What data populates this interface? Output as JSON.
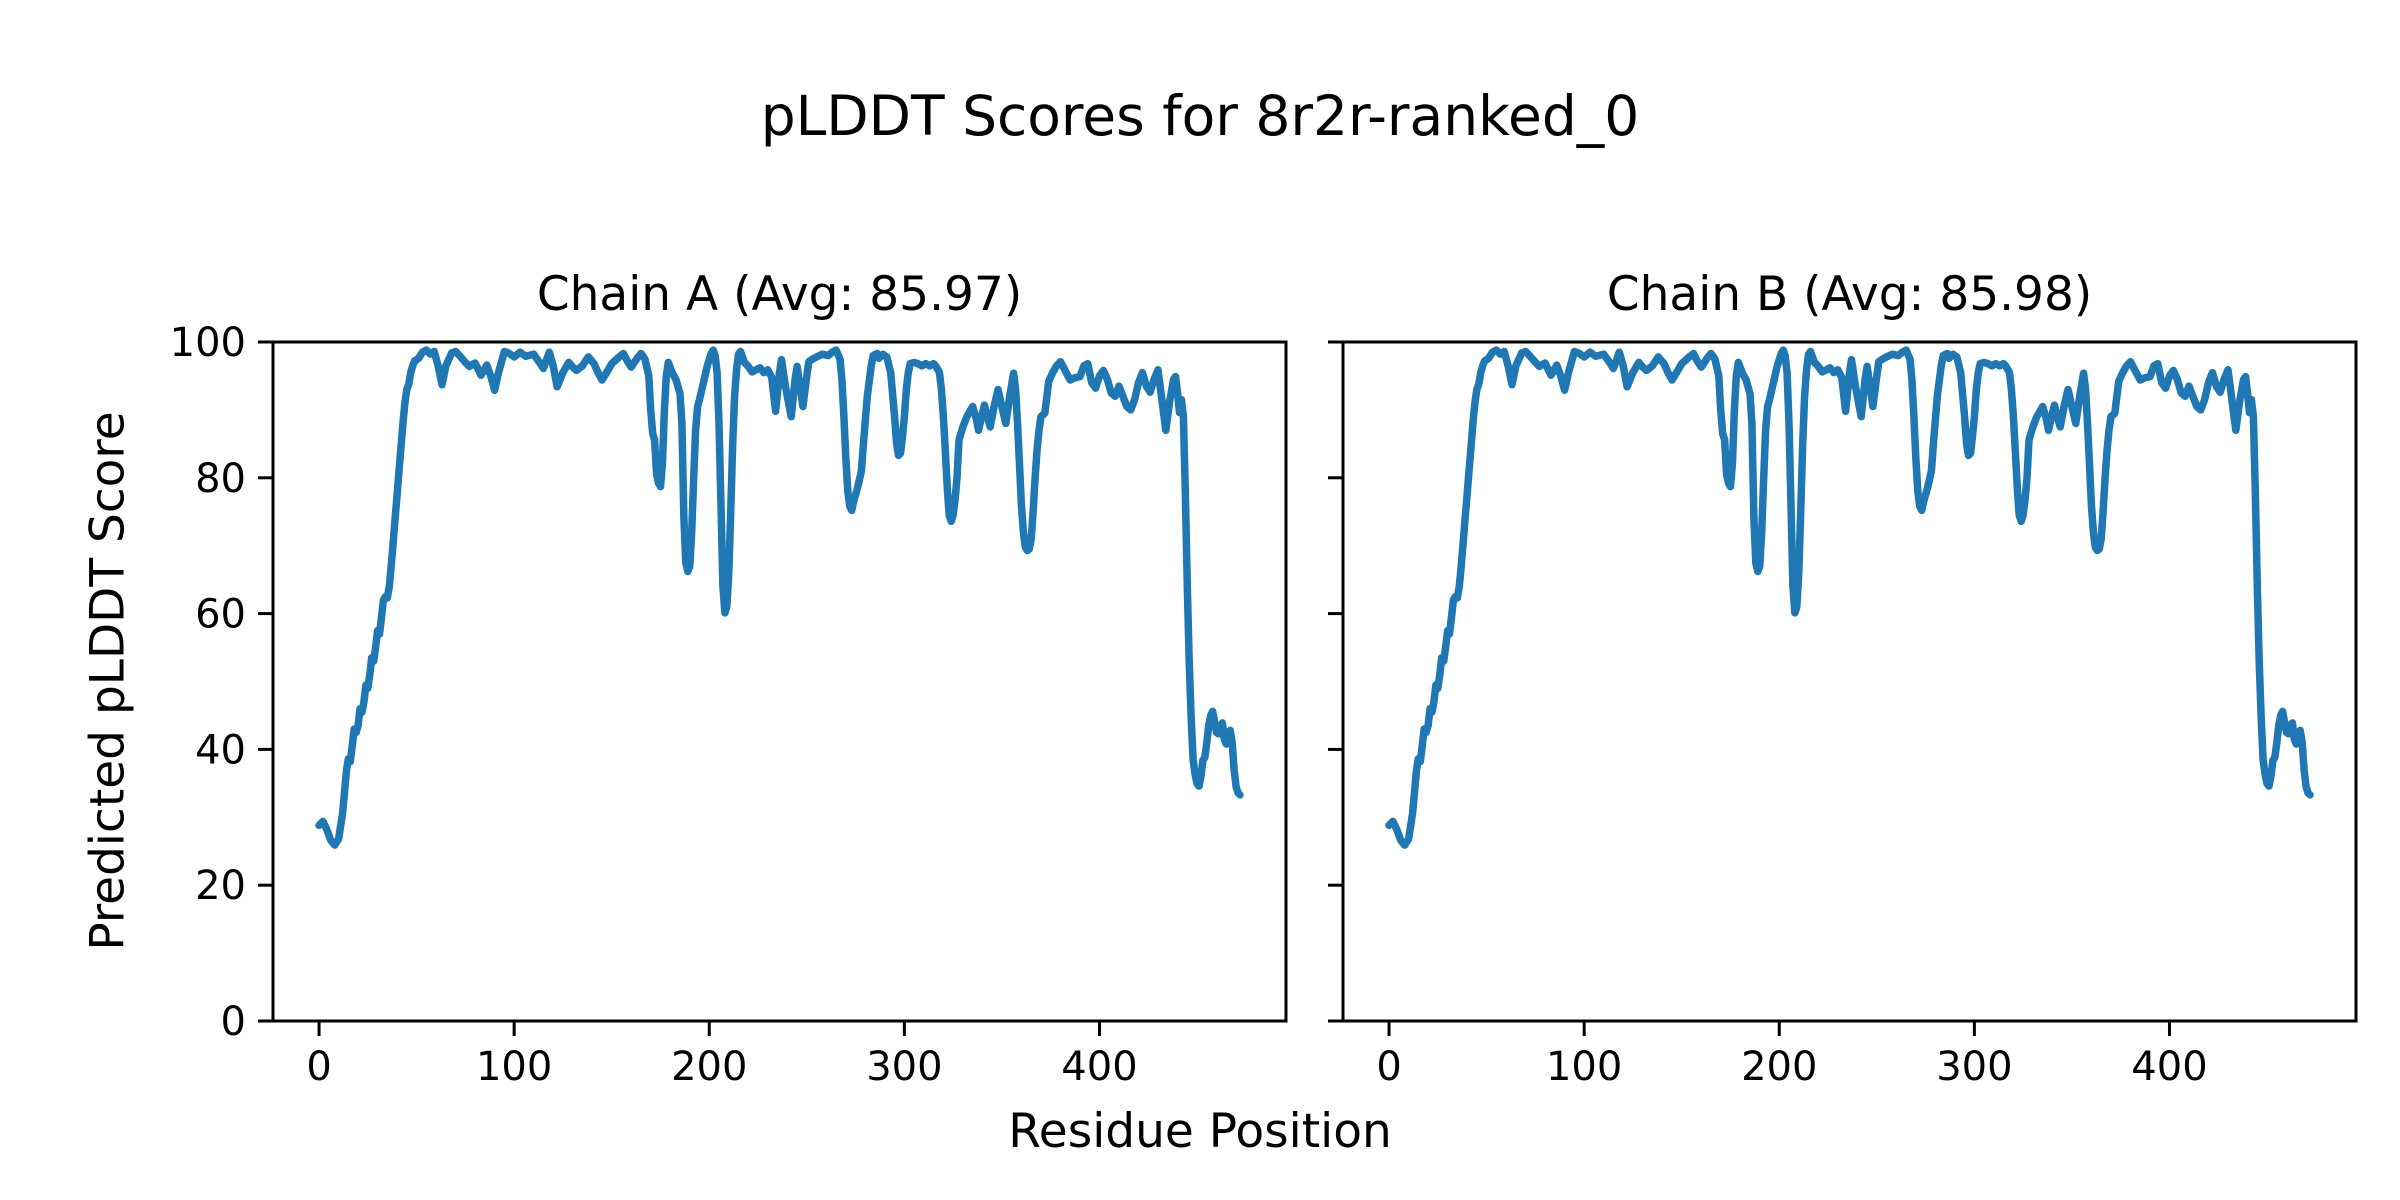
{
  "figure": {
    "background_color": "#ffffff",
    "text_color": "#000000"
  },
  "chart_data": {
    "type": "line",
    "title": "pLDDT Scores for 8r2r-ranked_0",
    "xlabel": "Residue Position",
    "ylabel": "Predicted pLDDT Score",
    "grid": false,
    "legend": null,
    "line_color": "#1f77b4",
    "spine_color": "#000000",
    "xlim": [
      -23.6,
      495.6
    ],
    "ylim": [
      0,
      100
    ],
    "xticks": [
      0,
      100,
      200,
      300,
      400
    ],
    "yticks": [
      0,
      20,
      40,
      60,
      80,
      100
    ],
    "subplots": [
      {
        "title": "Chain A (Avg: 85.97)",
        "avg": 85.97,
        "series_name": "Chain A",
        "show_y_tick_labels": true
      },
      {
        "title": "Chain B (Avg: 85.98)",
        "avg": 85.98,
        "series_name": "Chain B",
        "show_y_tick_labels": false
      }
    ],
    "x": [
      0,
      2,
      4,
      6,
      8,
      10,
      12,
      13,
      14,
      15,
      16,
      17,
      18,
      19,
      20,
      21,
      22,
      23,
      24,
      25,
      26,
      27,
      28,
      29,
      30,
      31,
      32,
      33,
      34,
      35,
      36,
      37,
      38,
      39,
      40,
      41,
      42,
      43,
      44,
      45,
      46,
      47,
      48,
      49,
      51,
      53,
      55,
      57,
      59,
      61,
      63,
      65,
      68,
      70,
      72,
      75,
      77,
      80,
      83,
      86,
      88,
      90,
      92,
      95,
      97,
      100,
      103,
      106,
      110,
      113,
      115,
      118,
      120,
      122,
      125,
      128,
      130,
      132,
      135,
      138,
      141,
      143,
      145,
      148,
      150,
      153,
      156,
      158,
      160,
      163,
      165,
      167,
      169,
      170,
      171,
      172,
      173,
      174,
      175,
      176,
      177,
      178,
      179,
      181,
      183,
      185,
      186,
      187,
      188,
      189,
      190,
      191,
      192,
      193,
      194,
      195,
      197,
      199,
      201,
      202,
      203,
      204,
      205,
      206,
      207,
      208,
      209,
      210,
      211,
      212,
      213,
      214,
      215,
      216,
      218,
      220,
      222,
      224,
      226,
      228,
      230,
      232,
      234,
      236,
      237,
      239,
      242,
      244,
      245,
      247,
      248,
      250,
      251,
      253,
      255,
      258,
      261,
      263,
      265,
      267,
      268,
      269,
      270,
      271,
      272,
      273,
      274,
      276,
      278,
      279,
      281,
      283,
      284,
      286,
      287,
      289,
      291,
      293,
      295,
      296,
      297,
      298,
      299,
      300,
      301,
      302,
      303,
      305,
      307,
      309,
      311,
      313,
      315,
      316,
      318,
      319,
      320,
      321,
      322,
      323,
      324,
      325,
      326,
      327,
      328,
      330,
      332,
      335,
      337,
      338,
      340,
      341,
      343,
      344,
      346,
      348,
      350,
      352,
      354,
      356,
      357,
      358,
      359,
      360,
      361,
      362,
      363,
      364,
      365,
      366,
      367,
      368,
      369,
      370,
      372,
      374,
      376,
      378,
      380,
      382,
      385,
      387,
      390,
      392,
      394,
      396,
      398,
      400,
      402,
      404,
      406,
      408,
      410,
      412,
      414,
      416,
      418,
      420,
      422,
      424,
      426,
      428,
      430,
      432,
      434,
      436,
      438,
      439,
      440,
      441,
      442,
      443,
      444,
      445,
      446,
      447,
      448,
      449,
      450,
      451,
      452,
      453,
      454,
      455,
      456,
      457,
      458,
      459,
      460,
      461,
      462,
      463,
      464,
      465,
      466,
      467,
      468,
      469,
      470,
      471,
      472
    ],
    "series": [
      {
        "name": "Chain A",
        "values": [
          28.8,
          29.4,
          28.2,
          26.6,
          25.9,
          26.8,
          30.5,
          33.5,
          36.8,
          38.6,
          38.2,
          40.5,
          43,
          42.5,
          43.5,
          46,
          45.5,
          47,
          49.5,
          49,
          51,
          53.5,
          53,
          55,
          57.5,
          57,
          59.5,
          62,
          62.5,
          62.3,
          64,
          67,
          70.5,
          74,
          77.5,
          81,
          84.5,
          88,
          91,
          93,
          93.8,
          95.5,
          96.5,
          97.2,
          97.6,
          98.5,
          98.8,
          98.2,
          98.6,
          96.5,
          93.7,
          96.5,
          98.4,
          98.6,
          98,
          97,
          96.4,
          96.9,
          95.1,
          96.6,
          95,
          92.9,
          95.5,
          98.6,
          98.4,
          97.8,
          98.5,
          97.9,
          98.2,
          97,
          96.1,
          98.5,
          96.5,
          93.4,
          95.5,
          97,
          96.3,
          95.8,
          96.5,
          97.8,
          96.8,
          95.5,
          94.4,
          95.8,
          96.8,
          97.6,
          98.3,
          97.2,
          96.3,
          97.6,
          98.3,
          97.5,
          95,
          90,
          86.5,
          85.6,
          80.5,
          79.2,
          78.7,
          82,
          90,
          95,
          97,
          95.5,
          94.4,
          92.4,
          88,
          74,
          67.5,
          66.2,
          67,
          72,
          80,
          87,
          90.5,
          91.5,
          94,
          96.5,
          98.3,
          98.8,
          98,
          95.5,
          88,
          76,
          64,
          60.1,
          61,
          66,
          75,
          85,
          92,
          96,
          98.2,
          98.6,
          97,
          96.4,
          95.6,
          95.9,
          96.2,
          95.5,
          95.9,
          94.8,
          89.8,
          95.5,
          97.4,
          93.5,
          89,
          94.5,
          96.4,
          92.5,
          90.5,
          95,
          97.1,
          97.5,
          97.8,
          98.2,
          98,
          98.5,
          98.8,
          97.5,
          94.5,
          89,
          83,
          78,
          75.8,
          75.2,
          76.5,
          78.5,
          81,
          85,
          92,
          96.5,
          98,
          98.3,
          97.6,
          98.2,
          97.8,
          95.5,
          89,
          85,
          83.3,
          83.6,
          86,
          89,
          93,
          95.5,
          96.8,
          97,
          96.8,
          96.5,
          96.8,
          96.5,
          96.8,
          96.5,
          95.5,
          93,
          89,
          84,
          78.5,
          74.5,
          73.6,
          74.5,
          76.8,
          80,
          85.6,
          87.5,
          89,
          90.5,
          88.5,
          87,
          89.5,
          90.7,
          88.5,
          87.5,
          90.5,
          93,
          90.5,
          88,
          92,
          95.4,
          93,
          88,
          82,
          76,
          72,
          69.8,
          69.3,
          69.5,
          71,
          75,
          80,
          84,
          87,
          89,
          89.5,
          94.2,
          95.5,
          96.5,
          97.1,
          96,
          94.4,
          94.7,
          94.9,
          96.5,
          96.8,
          94,
          93.2,
          95,
          95.8,
          94.5,
          92.5,
          92,
          93.5,
          92,
          90.5,
          90,
          91.5,
          94,
          95.5,
          93.5,
          92.6,
          94.5,
          95.9,
          91.5,
          87,
          91.3,
          94.5,
          94.9,
          92.5,
          89.6,
          91.5,
          89,
          78,
          64,
          53,
          44.5,
          38.5,
          36.3,
          35,
          34.6,
          36,
          38.4,
          38.8,
          41,
          43.5,
          45,
          45.6,
          44,
          42.5,
          42.3,
          43.5,
          43.9,
          41.5,
          40.8,
          42,
          42.8,
          41,
          37,
          34.5,
          33.6,
          33.3
        ]
      },
      {
        "name": "Chain B",
        "values": [
          28.8,
          29.4,
          28.2,
          26.6,
          25.9,
          26.8,
          30.5,
          33.5,
          36.8,
          38.6,
          38.2,
          40.5,
          43,
          42.5,
          43.5,
          46,
          45.5,
          47,
          49.5,
          49,
          51,
          53.5,
          53,
          55,
          57.5,
          57,
          59.5,
          62,
          62.5,
          62.3,
          64,
          67,
          70.5,
          74,
          77.5,
          81,
          84.5,
          88,
          91,
          93,
          93.8,
          95.5,
          96.5,
          97.2,
          97.6,
          98.5,
          98.8,
          98.2,
          98.6,
          96.5,
          93.7,
          96.5,
          98.4,
          98.6,
          98,
          97,
          96.4,
          96.9,
          95.1,
          96.6,
          95,
          92.9,
          95.5,
          98.6,
          98.4,
          97.8,
          98.5,
          97.9,
          98.2,
          97,
          96.1,
          98.5,
          96.5,
          93.4,
          95.5,
          97,
          96.3,
          95.8,
          96.5,
          97.8,
          96.8,
          95.5,
          94.4,
          95.8,
          96.8,
          97.6,
          98.3,
          97.2,
          96.3,
          97.6,
          98.3,
          97.5,
          95,
          90,
          86.5,
          85.6,
          80.5,
          79.2,
          78.7,
          82,
          90,
          95,
          97,
          95.5,
          94.4,
          92.4,
          88,
          74,
          67.5,
          66.2,
          67,
          72,
          80,
          87,
          90.5,
          91.5,
          94,
          96.5,
          98.3,
          98.8,
          98,
          95.5,
          88,
          76,
          64,
          60.1,
          61,
          66,
          75,
          85,
          92,
          96,
          98.2,
          98.6,
          97,
          96.4,
          95.6,
          95.9,
          96.2,
          95.5,
          95.9,
          94.8,
          89.8,
          95.5,
          97.4,
          93.5,
          89,
          94.5,
          96.4,
          92.5,
          90.5,
          95,
          97.1,
          97.5,
          97.8,
          98.2,
          98,
          98.5,
          98.8,
          97.5,
          94.5,
          89,
          83,
          78,
          75.8,
          75.2,
          76.5,
          78.5,
          81,
          85,
          92,
          96.5,
          98,
          98.3,
          97.6,
          98.2,
          97.8,
          95.5,
          89,
          85,
          83.3,
          83.6,
          86,
          89,
          93,
          95.5,
          96.8,
          97,
          96.8,
          96.5,
          96.8,
          96.5,
          96.8,
          96.5,
          95.5,
          93,
          89,
          84,
          78.5,
          74.5,
          73.6,
          74.5,
          76.8,
          80,
          85.6,
          87.5,
          89,
          90.5,
          88.5,
          87,
          89.5,
          90.7,
          88.5,
          87.5,
          90.5,
          93,
          90.5,
          88,
          92,
          95.4,
          93,
          88,
          82,
          76,
          72,
          69.8,
          69.3,
          69.5,
          71,
          75,
          80,
          84,
          87,
          89,
          89.5,
          94.2,
          95.5,
          96.5,
          97.1,
          96,
          94.4,
          94.7,
          94.9,
          96.5,
          96.8,
          94,
          93.2,
          95,
          95.8,
          94.5,
          92.5,
          92,
          93.5,
          92,
          90.5,
          90,
          91.5,
          94,
          95.5,
          93.5,
          92.6,
          94.5,
          95.9,
          91.5,
          87,
          91.3,
          94.5,
          94.9,
          92.5,
          89.6,
          91.5,
          89,
          78,
          64,
          53,
          44.5,
          38.5,
          36.3,
          35,
          34.6,
          36,
          38.4,
          38.8,
          41,
          43.5,
          45,
          45.6,
          44,
          42.5,
          42.3,
          43.5,
          43.9,
          41.5,
          40.8,
          42,
          42.8,
          41,
          37,
          34.5,
          33.6,
          33.3
        ]
      }
    ]
  }
}
